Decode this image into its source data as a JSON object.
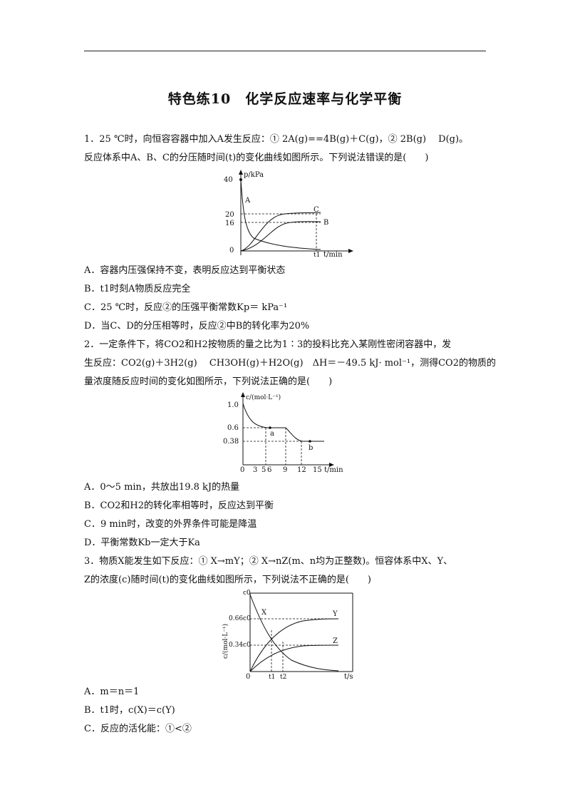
{
  "title": "特色练10　化学反应速率与化学平衡",
  "q1": {
    "stem1": "1．25 ℃时，向恒容容器中加入A发生反应：① 2A(g)==4B(g)＋C(g)，② 2B(g)　 D(g)。",
    "stem2": "反应体系中A、B、C的分压随时间(t)的变化曲线如图所示。下列说法错误的是(　　)",
    "options": [
      "A．容器内压强保持不变，表明反应达到平衡状态",
      "B．t1时刻A物质反应完全",
      "C．25 ℃时，反应②的压强平衡常数Kp＝  kPa⁻¹",
      "D．当C、D的分压相等时，反应②中B的转化率为20%"
    ],
    "chart_data": {
      "type": "line",
      "ylabel": "p/kPa",
      "xlabel": "t/min",
      "y_ticks": [
        "40",
        "20",
        "16",
        "0"
      ],
      "x_ticks": [
        "t1"
      ],
      "series": [
        {
          "name": "A",
          "points": [
            [
              0,
              40
            ],
            [
              0.05,
              20
            ],
            [
              0.15,
              8
            ],
            [
              0.35,
              4
            ],
            [
              1,
              0.5
            ]
          ]
        },
        {
          "name": "C",
          "points": [
            [
              0,
              0
            ],
            [
              0.2,
              4
            ],
            [
              0.4,
              14
            ],
            [
              0.6,
              19
            ],
            [
              1,
              20
            ]
          ]
        },
        {
          "name": "B",
          "points": [
            [
              0,
              0
            ],
            [
              0.3,
              3
            ],
            [
              0.5,
              11
            ],
            [
              0.7,
              15
            ],
            [
              1,
              16
            ]
          ]
        }
      ]
    }
  },
  "q2": {
    "stem1": "2．一定条件下，将CO2和H2按物质的量之比为1∶3的投料比充入某刚性密闭容器中，发",
    "stem2": "生反应：CO2(g)＋3H2(g)　 CH3OH(g)＋H2O(g)　ΔH＝－49.5 kJ· mol⁻¹，测得CO2的物质的",
    "stem3": "量浓度随反应时间的变化如图所示，下列说法正确的是(　　)",
    "options": [
      "A．0～5 min，共放出19.8 kJ的热量",
      "B．CO2和H2的转化率相等时，反应达到平衡",
      "C．9 min时，改变的外界条件可能是降温",
      "D．平衡常数Kb一定大于Ka"
    ],
    "chart_data": {
      "type": "line",
      "ylabel": "c/(mol·L⁻¹)",
      "xlabel": "t/min",
      "y_ticks": [
        "1.0",
        "0.6",
        "0.38"
      ],
      "x_ticks": [
        "0",
        "3",
        "5",
        "6",
        "9",
        "12",
        "15"
      ],
      "points_labels": [
        "a",
        "b"
      ],
      "series": [
        {
          "name": "CO2",
          "points": [
            [
              0,
              1.0
            ],
            [
              1,
              0.82
            ],
            [
              2,
              0.71
            ],
            [
              3,
              0.65
            ],
            [
              5,
              0.61
            ],
            [
              6,
              0.6
            ],
            [
              9,
              0.6
            ],
            [
              10.5,
              0.46
            ],
            [
              12,
              0.38
            ],
            [
              15,
              0.38
            ]
          ]
        }
      ]
    }
  },
  "q3": {
    "stem1": "3．物质X能发生如下反应：① X→mY；② X→nZ(m、n均为正整数)。恒容体系中X、Y、",
    "stem2": "Z的浓度(c)随时间(t)的变化曲线如图所示，下列说法不正确的是(　　)",
    "options": [
      "A．m＝n＝1",
      "B．t1时，c(X)＝c(Y)",
      "C．反应的活化能：①<②"
    ],
    "chart_data": {
      "type": "line",
      "ylabel": "c/(mol·L⁻¹)",
      "xlabel": "t/s",
      "y_ticks": [
        "c0",
        "0.66c0",
        "0.34c0",
        "0"
      ],
      "x_ticks": [
        "t1",
        "t2"
      ],
      "series": [
        {
          "name": "X",
          "points": [
            [
              0,
              1
            ],
            [
              0.1,
              0.6
            ],
            [
              0.2,
              0.38
            ],
            [
              0.4,
              0.15
            ],
            [
              1,
              0.02
            ]
          ]
        },
        {
          "name": "Y",
          "points": [
            [
              0,
              0
            ],
            [
              0.1,
              0.28
            ],
            [
              0.2,
              0.43
            ],
            [
              0.4,
              0.58
            ],
            [
              1,
              0.66
            ]
          ]
        },
        {
          "name": "Z",
          "points": [
            [
              0,
              0
            ],
            [
              0.1,
              0.14
            ],
            [
              0.2,
              0.22
            ],
            [
              0.4,
              0.3
            ],
            [
              1,
              0.34
            ]
          ]
        }
      ]
    }
  }
}
